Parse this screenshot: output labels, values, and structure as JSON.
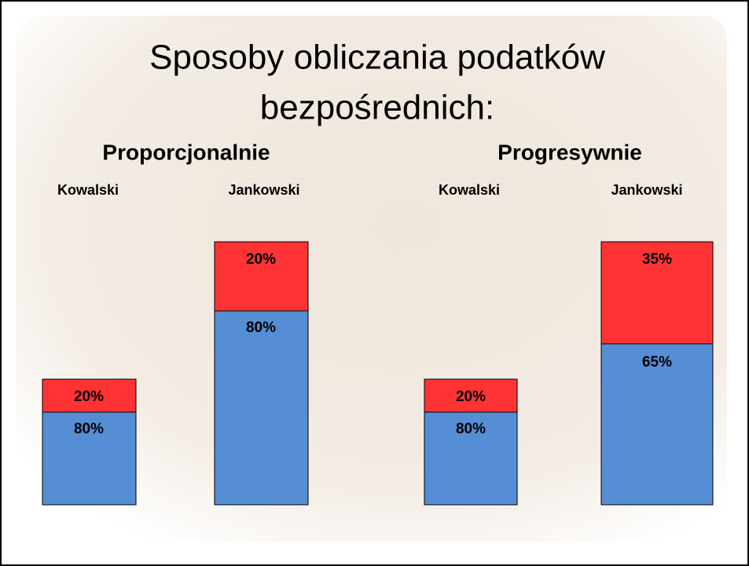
{
  "title": [
    "Sposoby obliczania podatków",
    "bezpośrednich:"
  ],
  "groups": [
    {
      "heading": "Proporcjonalnie",
      "people": [
        {
          "name": "Kowalski",
          "tax": "20%",
          "rest": "80%"
        },
        {
          "name": "Jankowski",
          "tax": "20%",
          "rest": "80%"
        }
      ]
    },
    {
      "heading": "Progresywnie",
      "people": [
        {
          "name": "Kowalski",
          "tax": "20%",
          "rest": "80%"
        },
        {
          "name": "Jankowski",
          "tax": "35%",
          "rest": "65%"
        }
      ]
    }
  ]
}
